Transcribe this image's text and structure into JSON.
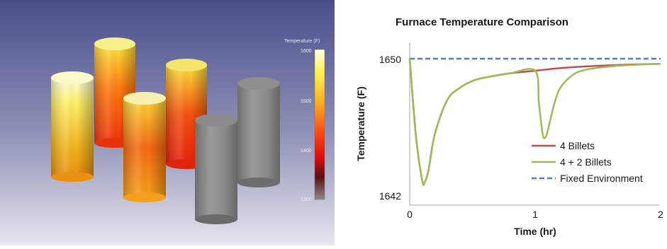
{
  "simulation": {
    "colorbar": {
      "title": "Temperature (F)",
      "ticks": [
        "1600",
        "1500",
        "1400",
        "1300"
      ]
    },
    "billets": [
      {
        "temperature_f": 1600
      },
      {
        "temperature_f": 1600
      },
      {
        "temperature_f": 1600
      },
      {
        "temperature_f": 1600
      },
      {
        "temperature_f": 1300
      },
      {
        "temperature_f": 1300
      }
    ]
  },
  "chart_data": {
    "type": "line",
    "title": "Furnace Temperature Comparison",
    "xlabel": "Time (hr)",
    "ylabel": "Temperature (F)",
    "xlim": [
      0,
      2
    ],
    "ylim": [
      1642,
      1650.5
    ],
    "xticks": [
      "0",
      "1",
      "2"
    ],
    "yticks": [
      "1642",
      "1650"
    ],
    "grid": false,
    "legend_position": "bottom-right",
    "series": [
      {
        "name": "4 Billets",
        "color": "#c0504d",
        "x": [
          0,
          0.05,
          0.1,
          0.12,
          0.15,
          0.2,
          0.3,
          0.4,
          0.5,
          0.6,
          0.8,
          1.0,
          1.2,
          1.4,
          1.6,
          1.8,
          2.0
        ],
        "y": [
          1650,
          1645.5,
          1642.9,
          1642.8,
          1643.5,
          1645.6,
          1647.6,
          1648.3,
          1648.7,
          1648.9,
          1649.15,
          1649.3,
          1649.45,
          1649.55,
          1649.62,
          1649.67,
          1649.7
        ]
      },
      {
        "name": "4 + 2 Billets",
        "color": "#9bbb59",
        "x": [
          0,
          0.05,
          0.1,
          0.12,
          0.15,
          0.2,
          0.3,
          0.4,
          0.5,
          0.6,
          0.8,
          1.0,
          1.03,
          1.06,
          1.08,
          1.1,
          1.15,
          1.2,
          1.3,
          1.4,
          1.6,
          1.8,
          2.0
        ],
        "y": [
          1650,
          1645.5,
          1642.9,
          1642.8,
          1643.5,
          1645.6,
          1647.6,
          1648.3,
          1648.7,
          1648.9,
          1649.15,
          1649.3,
          1647.4,
          1645.6,
          1645.4,
          1645.8,
          1647.3,
          1648.3,
          1649.05,
          1649.35,
          1649.55,
          1649.65,
          1649.7
        ]
      },
      {
        "name": "Fixed Environment",
        "color": "#4f81bd",
        "dashed": true,
        "x": [
          0,
          2
        ],
        "y": [
          1650,
          1650
        ]
      }
    ]
  }
}
